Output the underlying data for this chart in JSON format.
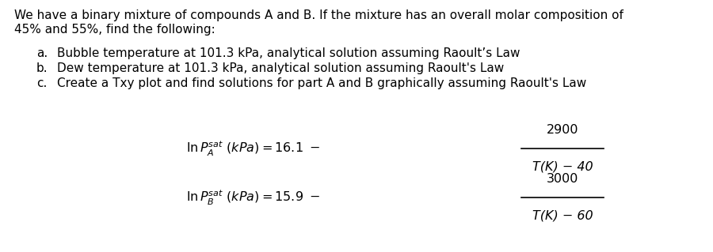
{
  "background_color": "#ffffff",
  "intro_line1": "We have a binary mixture of compounds A and B. If the mixture has an overall molar composition of",
  "intro_line2": "45% and 55%, find the following:",
  "item_a": "Bubble temperature at 101.3 kPa, analytical solution assuming Raoult’s Law",
  "item_b": "Dew temperature at 101.3 kPa, analytical solution assuming Raoult's Law",
  "item_c": "Create a Txy plot and find solutions for part A and B graphically assuming Raoult's Law",
  "label_a": "a.",
  "label_b": "b.",
  "label_c": "c.",
  "eq1_num": "2900",
  "eq1_den": "T(K) − 40",
  "eq2_num": "3000",
  "eq2_den": "T(K) − 60",
  "font_size_body": 11.0,
  "font_size_eq": 11.5,
  "font_family": "DejaVu Sans"
}
